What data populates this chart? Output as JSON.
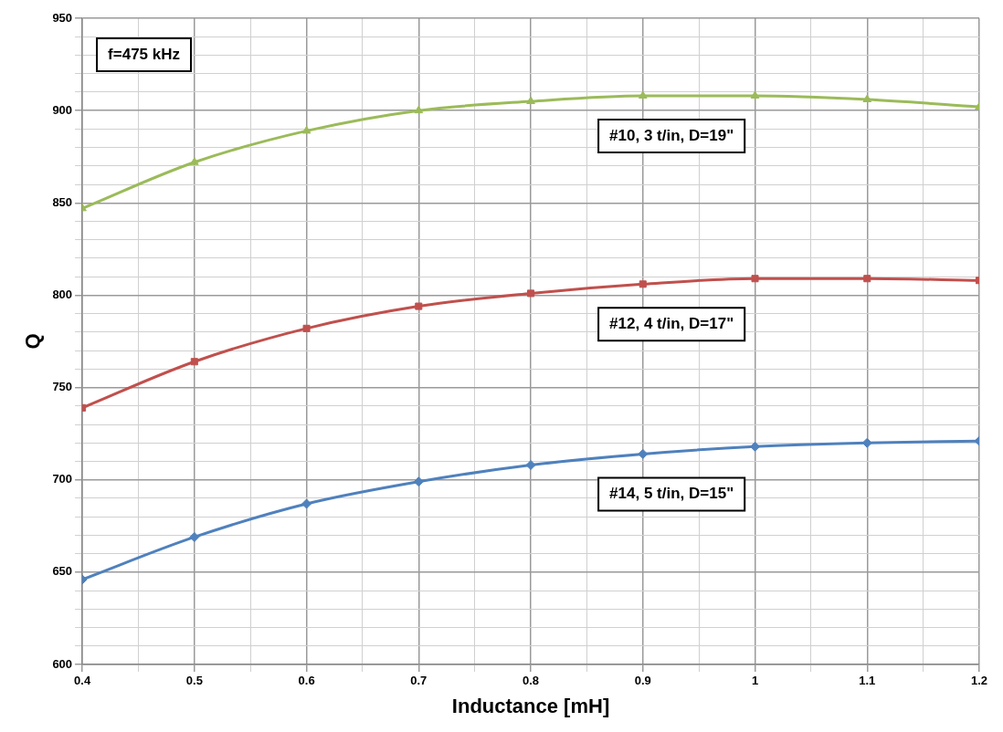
{
  "chart_data": {
    "type": "line",
    "xlabel": "Inductance [mH]",
    "ylabel": "Q",
    "annotations": [
      "f=475 kHz"
    ],
    "x": [
      0.4,
      0.5,
      0.6,
      0.7,
      0.8,
      0.9,
      1.0,
      1.1,
      1.2
    ],
    "series": [
      {
        "name": "#10, 3 t/in, D=19\"",
        "color": "#9bbb59",
        "marker": "triangle",
        "values": [
          847,
          872,
          889,
          900,
          905,
          908,
          908,
          906,
          902
        ]
      },
      {
        "name": "#12, 4 t/in, D=17\"",
        "color": "#c0504d",
        "marker": "square",
        "values": [
          739,
          764,
          782,
          794,
          801,
          806,
          809,
          809,
          808
        ]
      },
      {
        "name": "#14, 5 t/in, D=15\"",
        "color": "#4f81bd",
        "marker": "diamond",
        "values": [
          646,
          669,
          687,
          699,
          708,
          714,
          718,
          720,
          721
        ]
      }
    ],
    "xlim": [
      0.4,
      1.2
    ],
    "xticks": [
      0.4,
      {
        "value": 0.45,
        "label": null
      },
      0.5,
      {
        "value": 0.55,
        "label": null
      },
      0.6,
      {
        "value": 0.65,
        "label": null
      },
      0.7,
      {
        "value": 0.75,
        "label": null
      },
      0.8,
      {
        "value": 0.85,
        "label": null
      },
      0.9,
      {
        "value": 0.95,
        "label": null
      },
      1,
      {
        "value": 1.05,
        "label": null
      },
      1.1,
      {
        "value": 1.15,
        "label": null
      },
      1.2
    ],
    "ylim": [
      600,
      950
    ],
    "yticks": [
      600,
      {
        "value": 610,
        "label": null
      },
      {
        "value": 620,
        "label": null
      },
      {
        "value": 630,
        "label": null
      },
      {
        "value": 640,
        "label": null
      },
      650,
      {
        "value": 660,
        "label": null
      },
      {
        "value": 670,
        "label": null
      },
      {
        "value": 680,
        "label": null
      },
      {
        "value": 690,
        "label": null
      },
      700,
      {
        "value": 710,
        "label": null
      },
      {
        "value": 720,
        "label": null
      },
      {
        "value": 730,
        "label": null
      },
      {
        "value": 740,
        "label": null
      },
      750,
      {
        "value": 760,
        "label": null
      },
      {
        "value": 770,
        "label": null
      },
      {
        "value": 780,
        "label": null
      },
      {
        "value": 790,
        "label": null
      },
      800,
      {
        "value": 810,
        "label": null
      },
      {
        "value": 820,
        "label": null
      },
      {
        "value": 830,
        "label": null
      },
      {
        "value": 840,
        "label": null
      },
      850,
      {
        "value": 860,
        "label": null
      },
      {
        "value": 870,
        "label": null
      },
      {
        "value": 880,
        "label": null
      },
      {
        "value": 890,
        "label": null
      },
      900,
      {
        "value": 910,
        "label": null
      },
      {
        "value": 920,
        "label": null
      },
      {
        "value": 930,
        "label": null
      },
      {
        "value": 940,
        "label": null
      },
      950
    ],
    "grid": true,
    "legend": false,
    "line_style": "solid"
  }
}
